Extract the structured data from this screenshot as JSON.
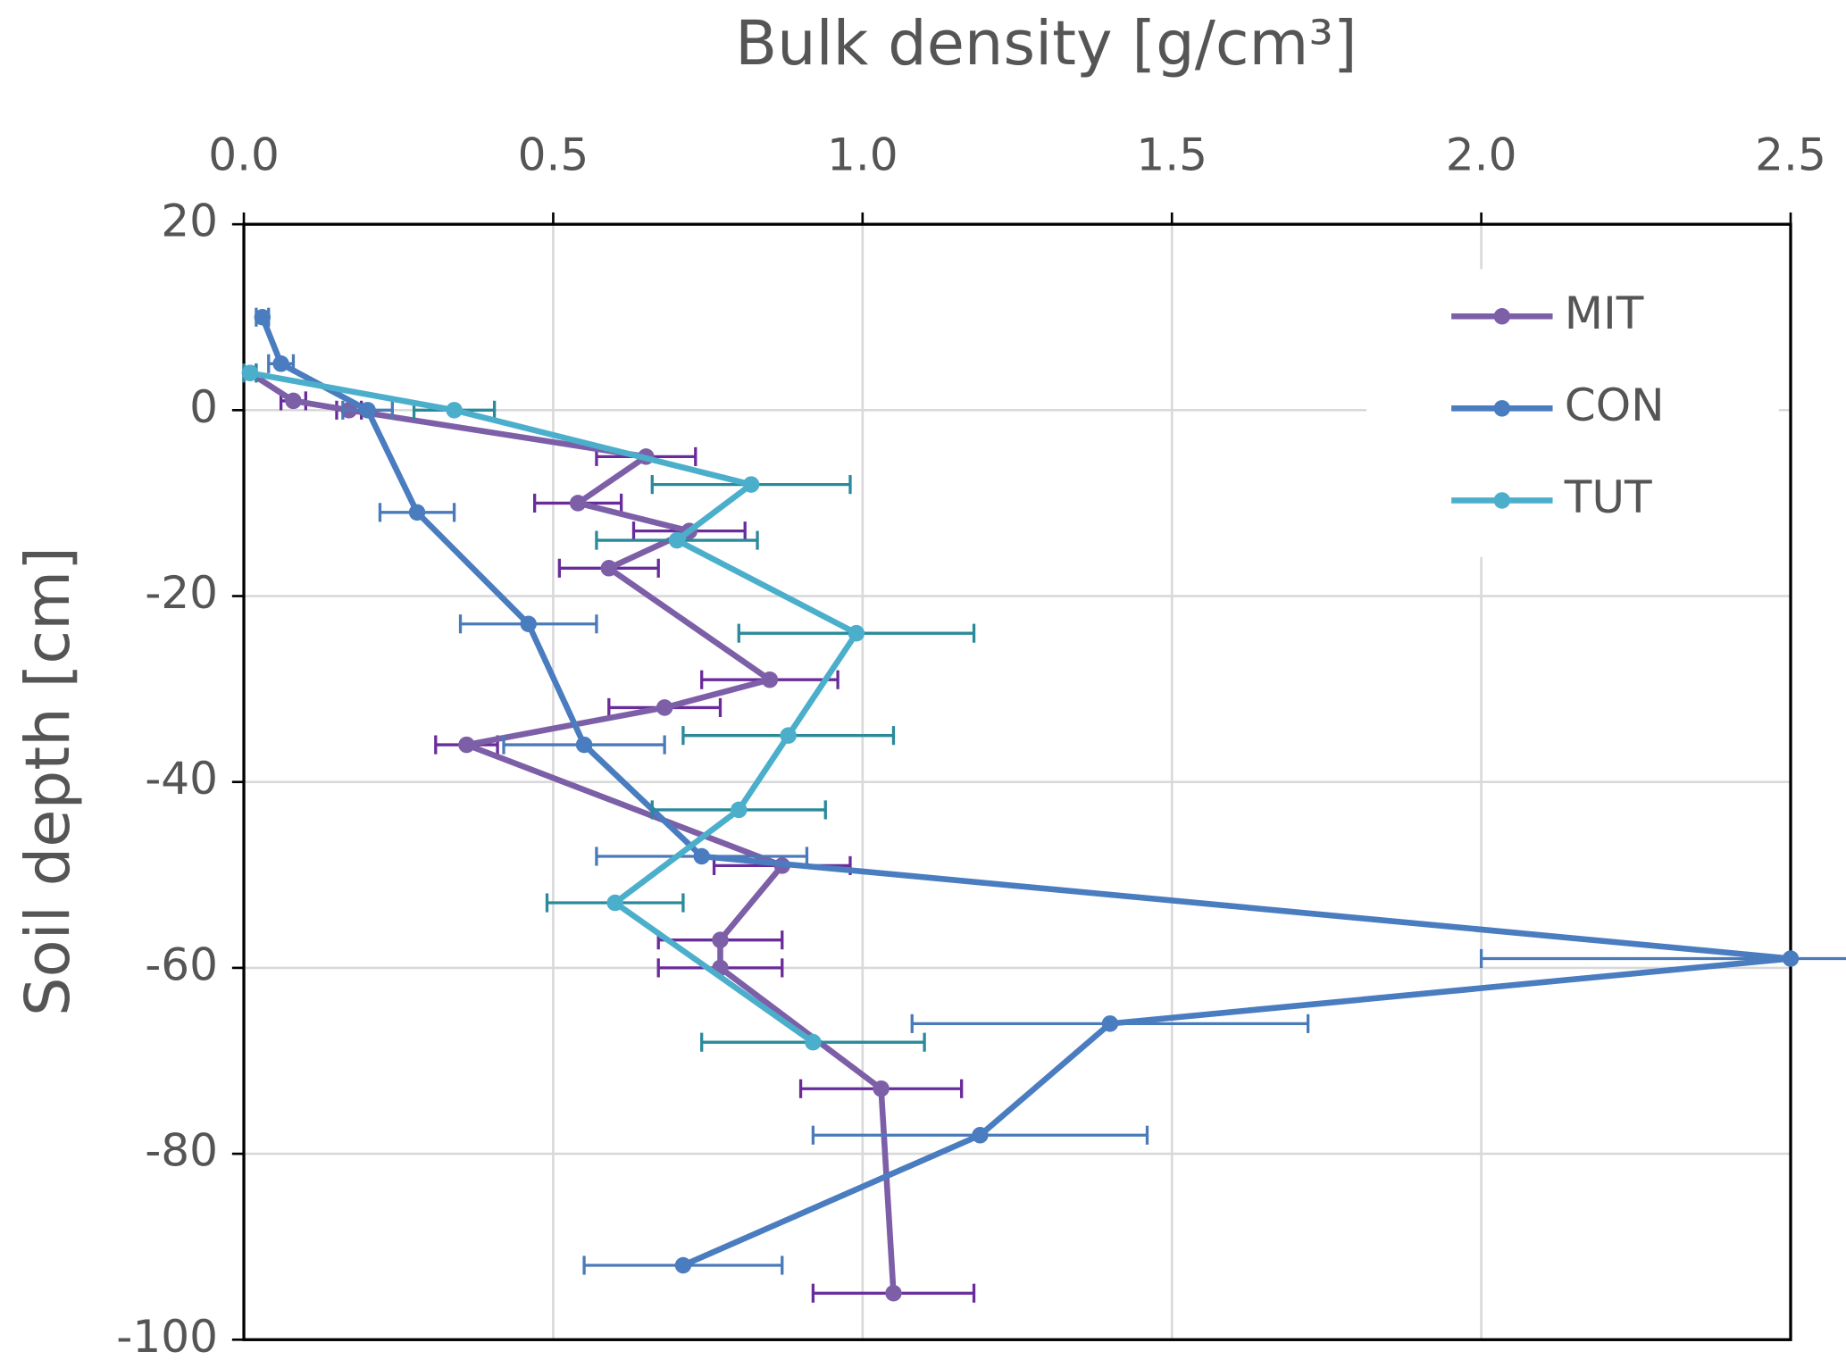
{
  "chart_data": {
    "type": "line",
    "x_label": "Bulk density [g/cm³]",
    "y_label": "Soil depth [cm]",
    "xlim": [
      0,
      2.5
    ],
    "xticks": [
      {
        "value": 0,
        "label": "0.0"
      },
      0.5,
      {
        "value": 1,
        "label": "1.0"
      },
      1.5,
      {
        "value": 2,
        "label": "2.0"
      },
      2.5
    ],
    "ylim": [
      -100,
      20
    ],
    "yticks": [
      20,
      0,
      -20,
      -40,
      -60,
      -80,
      -100
    ],
    "grid": true,
    "legend": "upper right",
    "series": [
      {
        "name": "MIT",
        "color": "#7d5fa8",
        "error_color": "#6a2c9a",
        "x": [
          0.01,
          0.08,
          0.17,
          0.65,
          0.54,
          0.72,
          0.59,
          0.85,
          0.68,
          0.36,
          0.87,
          0.77,
          0.77,
          1.03,
          1.05
        ],
        "y": [
          4,
          1,
          0,
          -5,
          -10,
          -13,
          -17,
          -29,
          -32,
          -36,
          -49,
          -57,
          -60,
          -73,
          -95
        ],
        "errors": [
          0.01,
          0.02,
          0.02,
          0.08,
          0.07,
          0.09,
          0.08,
          0.11,
          0.09,
          0.05,
          0.11,
          0.1,
          0.1,
          0.13,
          0.13
        ]
      },
      {
        "name": "CON",
        "color": "#4a7cc0",
        "error_color": "#4a7ab8",
        "x": [
          0.03,
          0.06,
          0.2,
          0.28,
          0.46,
          0.55,
          0.74,
          2.5,
          1.4,
          1.19,
          0.71
        ],
        "y": [
          10,
          5,
          0,
          -11,
          -23,
          -36,
          -48,
          -59,
          -66,
          -78,
          -92
        ],
        "errors": [
          0.01,
          0.02,
          0.04,
          0.06,
          0.11,
          0.13,
          0.17,
          0.5,
          0.32,
          0.27,
          0.16
        ]
      },
      {
        "name": "TUT",
        "color": "#4bafcc",
        "error_color": "#2a8a9a",
        "x": [
          0.01,
          0.34,
          0.82,
          0.7,
          0.99,
          0.88,
          0.8,
          0.6,
          0.92
        ],
        "y": [
          4,
          0,
          -8,
          -14,
          -24,
          -35,
          -43,
          -53,
          -68
        ],
        "errors": [
          0.01,
          0.065,
          0.16,
          0.13,
          0.19,
          0.17,
          0.14,
          0.11,
          0.18
        ]
      }
    ]
  }
}
